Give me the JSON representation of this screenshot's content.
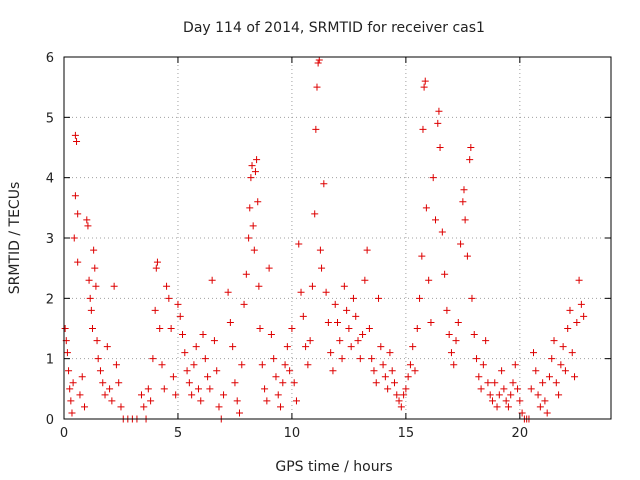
{
  "chart_data": {
    "type": "scatter",
    "title": "Day 114 of 2014, SRMTID for receiver cas1",
    "xlabel": "GPS time / hours",
    "ylabel": "SRMTID / TECUs",
    "xlim": [
      0,
      24
    ],
    "ylim": [
      0,
      6
    ],
    "xticks": [
      0,
      5,
      10,
      15,
      20
    ],
    "yticks": [
      0,
      1,
      2,
      3,
      4,
      5,
      6
    ],
    "xtick_labels": [
      "0",
      "5",
      "10",
      "15",
      "20"
    ],
    "ytick_labels": [
      "0",
      "1",
      "2",
      "3",
      "4",
      "5",
      "6"
    ],
    "grid": true,
    "marker": "+",
    "series": [
      {
        "name": "SRMTID",
        "color": "#dd0000",
        "points": [
          [
            0.05,
            1.5
          ],
          [
            0.1,
            1.3
          ],
          [
            0.15,
            1.1
          ],
          [
            0.2,
            0.8
          ],
          [
            0.25,
            0.5
          ],
          [
            0.3,
            0.3
          ],
          [
            0.35,
            0.1
          ],
          [
            0.4,
            0.6
          ],
          [
            0.45,
            3.0
          ],
          [
            0.5,
            3.7
          ],
          [
            0.5,
            4.7
          ],
          [
            0.55,
            4.6
          ],
          [
            0.6,
            3.4
          ],
          [
            0.6,
            2.6
          ],
          [
            0.7,
            0.4
          ],
          [
            0.8,
            0.7
          ],
          [
            0.9,
            0.2
          ],
          [
            1.0,
            3.3
          ],
          [
            1.05,
            3.2
          ],
          [
            1.1,
            2.3
          ],
          [
            1.15,
            2.0
          ],
          [
            1.2,
            1.8
          ],
          [
            1.25,
            1.5
          ],
          [
            1.3,
            2.8
          ],
          [
            1.35,
            2.5
          ],
          [
            1.4,
            2.2
          ],
          [
            1.45,
            1.3
          ],
          [
            1.5,
            1.0
          ],
          [
            1.6,
            0.8
          ],
          [
            1.7,
            0.6
          ],
          [
            1.8,
            0.4
          ],
          [
            1.9,
            1.2
          ],
          [
            2.0,
            0.5
          ],
          [
            2.1,
            0.3
          ],
          [
            2.2,
            2.2
          ],
          [
            2.3,
            0.9
          ],
          [
            2.4,
            0.6
          ],
          [
            2.5,
            0.2
          ],
          [
            2.6,
            0.0
          ],
          [
            2.8,
            0.0
          ],
          [
            3.0,
            0.0
          ],
          [
            3.2,
            0.0
          ],
          [
            3.4,
            0.4
          ],
          [
            3.5,
            0.2
          ],
          [
            3.6,
            0.0
          ],
          [
            3.7,
            0.5
          ],
          [
            3.8,
            0.3
          ],
          [
            3.9,
            1.0
          ],
          [
            4.0,
            1.8
          ],
          [
            4.05,
            2.5
          ],
          [
            4.1,
            2.6
          ],
          [
            4.2,
            1.5
          ],
          [
            4.3,
            0.9
          ],
          [
            4.4,
            0.5
          ],
          [
            4.5,
            2.2
          ],
          [
            4.6,
            2.0
          ],
          [
            4.7,
            1.5
          ],
          [
            4.8,
            0.7
          ],
          [
            4.9,
            0.4
          ],
          [
            5.0,
            1.9
          ],
          [
            5.1,
            1.7
          ],
          [
            5.2,
            1.4
          ],
          [
            5.3,
            1.1
          ],
          [
            5.4,
            0.8
          ],
          [
            5.5,
            0.6
          ],
          [
            5.6,
            0.4
          ],
          [
            5.7,
            0.9
          ],
          [
            5.8,
            1.2
          ],
          [
            5.9,
            0.5
          ],
          [
            6.0,
            0.3
          ],
          [
            6.1,
            1.4
          ],
          [
            6.2,
            1.0
          ],
          [
            6.3,
            0.7
          ],
          [
            6.4,
            0.5
          ],
          [
            6.5,
            2.3
          ],
          [
            6.6,
            1.3
          ],
          [
            6.7,
            0.8
          ],
          [
            6.8,
            0.2
          ],
          [
            6.9,
            0.0
          ],
          [
            7.0,
            0.4
          ],
          [
            7.2,
            2.1
          ],
          [
            7.3,
            1.6
          ],
          [
            7.4,
            1.2
          ],
          [
            7.5,
            0.6
          ],
          [
            7.6,
            0.3
          ],
          [
            7.7,
            0.1
          ],
          [
            7.8,
            0.9
          ],
          [
            7.9,
            1.9
          ],
          [
            8.0,
            2.4
          ],
          [
            8.1,
            3.0
          ],
          [
            8.15,
            3.5
          ],
          [
            8.2,
            4.0
          ],
          [
            8.25,
            4.2
          ],
          [
            8.3,
            3.2
          ],
          [
            8.35,
            2.8
          ],
          [
            8.4,
            4.1
          ],
          [
            8.45,
            4.3
          ],
          [
            8.5,
            3.6
          ],
          [
            8.55,
            2.2
          ],
          [
            8.6,
            1.5
          ],
          [
            8.7,
            0.9
          ],
          [
            8.8,
            0.5
          ],
          [
            8.9,
            0.3
          ],
          [
            9.0,
            2.5
          ],
          [
            9.1,
            1.4
          ],
          [
            9.2,
            1.0
          ],
          [
            9.3,
            0.7
          ],
          [
            9.4,
            0.4
          ],
          [
            9.5,
            0.2
          ],
          [
            9.6,
            0.6
          ],
          [
            9.7,
            0.9
          ],
          [
            9.8,
            1.2
          ],
          [
            9.9,
            0.8
          ],
          [
            10.0,
            1.5
          ],
          [
            10.1,
            0.6
          ],
          [
            10.2,
            0.3
          ],
          [
            10.3,
            2.9
          ],
          [
            10.4,
            2.1
          ],
          [
            10.5,
            1.7
          ],
          [
            10.6,
            1.2
          ],
          [
            10.7,
            0.9
          ],
          [
            10.8,
            1.3
          ],
          [
            10.9,
            2.2
          ],
          [
            11.0,
            3.4
          ],
          [
            11.05,
            4.8
          ],
          [
            11.1,
            5.5
          ],
          [
            11.15,
            5.9
          ],
          [
            11.2,
            5.95
          ],
          [
            11.25,
            2.8
          ],
          [
            11.3,
            2.5
          ],
          [
            11.4,
            3.9
          ],
          [
            11.5,
            2.1
          ],
          [
            11.6,
            1.6
          ],
          [
            11.7,
            1.1
          ],
          [
            11.8,
            0.8
          ],
          [
            11.9,
            1.9
          ],
          [
            12.0,
            1.6
          ],
          [
            12.1,
            1.3
          ],
          [
            12.2,
            1.0
          ],
          [
            12.3,
            2.2
          ],
          [
            12.4,
            1.8
          ],
          [
            12.5,
            1.5
          ],
          [
            12.6,
            1.2
          ],
          [
            12.7,
            2.0
          ],
          [
            12.8,
            1.7
          ],
          [
            12.9,
            1.3
          ],
          [
            13.0,
            1.0
          ],
          [
            13.1,
            1.4
          ],
          [
            13.2,
            2.3
          ],
          [
            13.3,
            2.8
          ],
          [
            13.4,
            1.5
          ],
          [
            13.5,
            1.0
          ],
          [
            13.6,
            0.8
          ],
          [
            13.7,
            0.6
          ],
          [
            13.8,
            2.0
          ],
          [
            13.9,
            1.2
          ],
          [
            14.0,
            0.9
          ],
          [
            14.1,
            0.7
          ],
          [
            14.2,
            0.5
          ],
          [
            14.3,
            1.1
          ],
          [
            14.4,
            0.8
          ],
          [
            14.5,
            0.6
          ],
          [
            14.6,
            0.4
          ],
          [
            14.7,
            0.3
          ],
          [
            14.8,
            0.2
          ],
          [
            14.9,
            0.4
          ],
          [
            15.0,
            0.5
          ],
          [
            15.1,
            0.7
          ],
          [
            15.2,
            0.9
          ],
          [
            15.3,
            1.2
          ],
          [
            15.4,
            0.8
          ],
          [
            15.5,
            1.5
          ],
          [
            15.6,
            2.0
          ],
          [
            15.7,
            2.7
          ],
          [
            15.75,
            4.8
          ],
          [
            15.8,
            5.5
          ],
          [
            15.85,
            5.6
          ],
          [
            15.9,
            3.5
          ],
          [
            16.0,
            2.3
          ],
          [
            16.1,
            1.6
          ],
          [
            16.2,
            4.0
          ],
          [
            16.3,
            3.3
          ],
          [
            16.4,
            4.9
          ],
          [
            16.45,
            5.1
          ],
          [
            16.5,
            4.5
          ],
          [
            16.6,
            3.1
          ],
          [
            16.7,
            2.4
          ],
          [
            16.8,
            1.8
          ],
          [
            16.9,
            1.4
          ],
          [
            17.0,
            1.1
          ],
          [
            17.1,
            0.9
          ],
          [
            17.2,
            1.3
          ],
          [
            17.3,
            1.6
          ],
          [
            17.4,
            2.9
          ],
          [
            17.5,
            3.6
          ],
          [
            17.55,
            3.8
          ],
          [
            17.6,
            3.3
          ],
          [
            17.7,
            2.7
          ],
          [
            17.8,
            4.3
          ],
          [
            17.85,
            4.5
          ],
          [
            17.9,
            2.0
          ],
          [
            18.0,
            1.4
          ],
          [
            18.1,
            1.0
          ],
          [
            18.2,
            0.7
          ],
          [
            18.3,
            0.5
          ],
          [
            18.4,
            0.9
          ],
          [
            18.5,
            1.3
          ],
          [
            18.6,
            0.6
          ],
          [
            18.7,
            0.4
          ],
          [
            18.8,
            0.3
          ],
          [
            18.9,
            0.6
          ],
          [
            19.0,
            0.2
          ],
          [
            19.1,
            0.4
          ],
          [
            19.2,
            0.8
          ],
          [
            19.3,
            0.5
          ],
          [
            19.4,
            0.3
          ],
          [
            19.5,
            0.2
          ],
          [
            19.6,
            0.4
          ],
          [
            19.7,
            0.6
          ],
          [
            19.8,
            0.9
          ],
          [
            19.9,
            0.5
          ],
          [
            20.0,
            0.3
          ],
          [
            20.1,
            0.1
          ],
          [
            20.2,
            0.0
          ],
          [
            20.3,
            0.0
          ],
          [
            20.4,
            0.0
          ],
          [
            20.5,
            0.5
          ],
          [
            20.6,
            1.1
          ],
          [
            20.7,
            0.8
          ],
          [
            20.8,
            0.4
          ],
          [
            20.9,
            0.2
          ],
          [
            21.0,
            0.6
          ],
          [
            21.1,
            0.3
          ],
          [
            21.2,
            0.1
          ],
          [
            21.3,
            0.7
          ],
          [
            21.4,
            1.0
          ],
          [
            21.5,
            1.3
          ],
          [
            21.6,
            0.6
          ],
          [
            21.7,
            0.4
          ],
          [
            21.8,
            0.9
          ],
          [
            21.9,
            1.2
          ],
          [
            22.0,
            0.8
          ],
          [
            22.1,
            1.5
          ],
          [
            22.2,
            1.8
          ],
          [
            22.3,
            1.1
          ],
          [
            22.4,
            0.7
          ],
          [
            22.5,
            1.6
          ],
          [
            22.6,
            2.3
          ],
          [
            22.7,
            1.9
          ],
          [
            22.8,
            1.7
          ]
        ]
      }
    ]
  }
}
